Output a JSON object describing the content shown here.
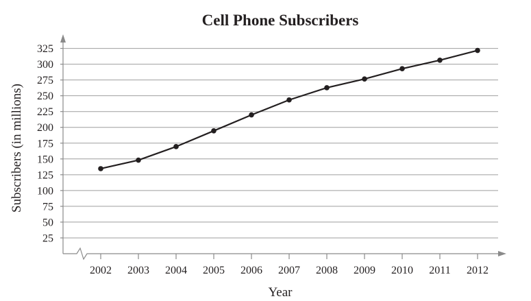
{
  "chart_data": {
    "type": "line",
    "title": "Cell Phone Subscribers",
    "xlabel": "Year",
    "ylabel": "Subscribers (in millions)",
    "x": [
      2002,
      2003,
      2004,
      2005,
      2006,
      2007,
      2008,
      2009,
      2010,
      2011,
      2012
    ],
    "x_tick_labels": [
      "2002",
      "2003",
      "2004",
      "2005",
      "2006",
      "2007",
      "2008",
      "2009",
      "2010",
      "2011",
      "2012"
    ],
    "y_ticks": [
      25,
      50,
      75,
      100,
      125,
      150,
      175,
      200,
      225,
      250,
      275,
      300,
      325
    ],
    "y_tick_labels": [
      "25",
      "50",
      "75",
      "100",
      "125",
      "150",
      "175",
      "200",
      "225",
      "250",
      "275",
      "300",
      "325"
    ],
    "ylim": [
      0,
      325
    ],
    "y_axis_break": true,
    "grid": true,
    "series": [
      {
        "values": [
          134.6,
          148.1,
          169.5,
          194.5,
          219.7,
          243.4,
          262.7,
          276.6,
          292.8,
          306.3,
          321.8
        ]
      }
    ],
    "colors": {
      "line": "#231f20",
      "grid": "#9e9e9e",
      "axis": "#8a8a8a"
    }
  }
}
